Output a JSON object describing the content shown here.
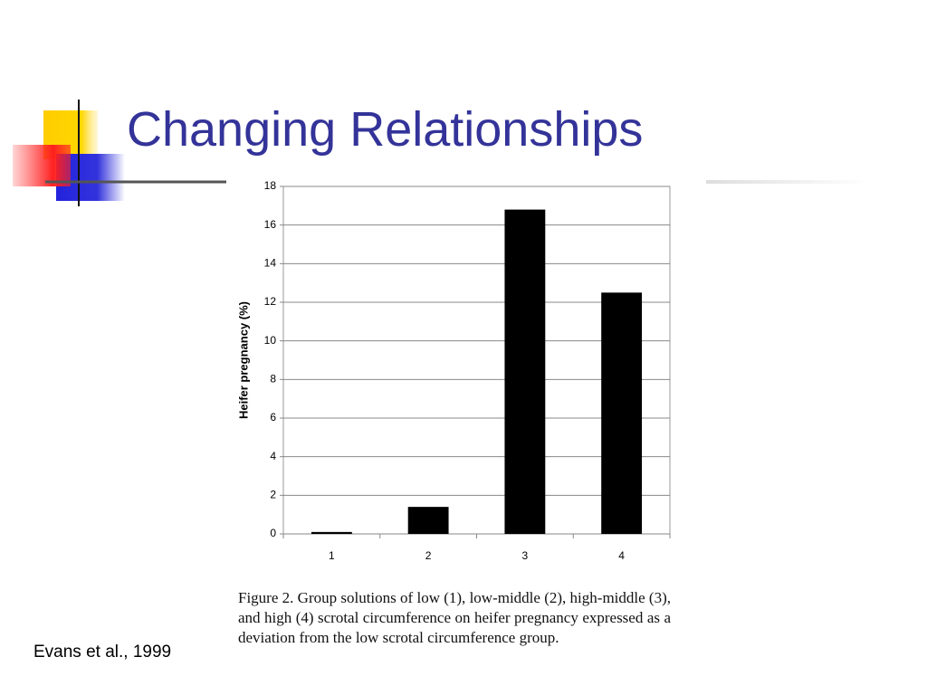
{
  "slide": {
    "title": "Changing Relationships",
    "citation": "Evans et al., 1999"
  },
  "chart_data": {
    "type": "bar",
    "y_label": "Heifer pregnancy (%)",
    "categories": [
      "1",
      "2",
      "3",
      "4"
    ],
    "values": [
      0.1,
      1.4,
      16.8,
      12.5
    ],
    "color": "#000000",
    "ylim": [
      0,
      18
    ],
    "yticks": [
      0,
      2,
      4,
      6,
      8,
      10,
      12,
      14,
      16,
      18
    ],
    "grid": true,
    "caption": "Figure 2. Group solutions of low (1), low-middle (2), high-middle (3), and high (4) scrotal circumference on heifer pregnancy expressed as a deviation from the low scrotal circumference group."
  }
}
